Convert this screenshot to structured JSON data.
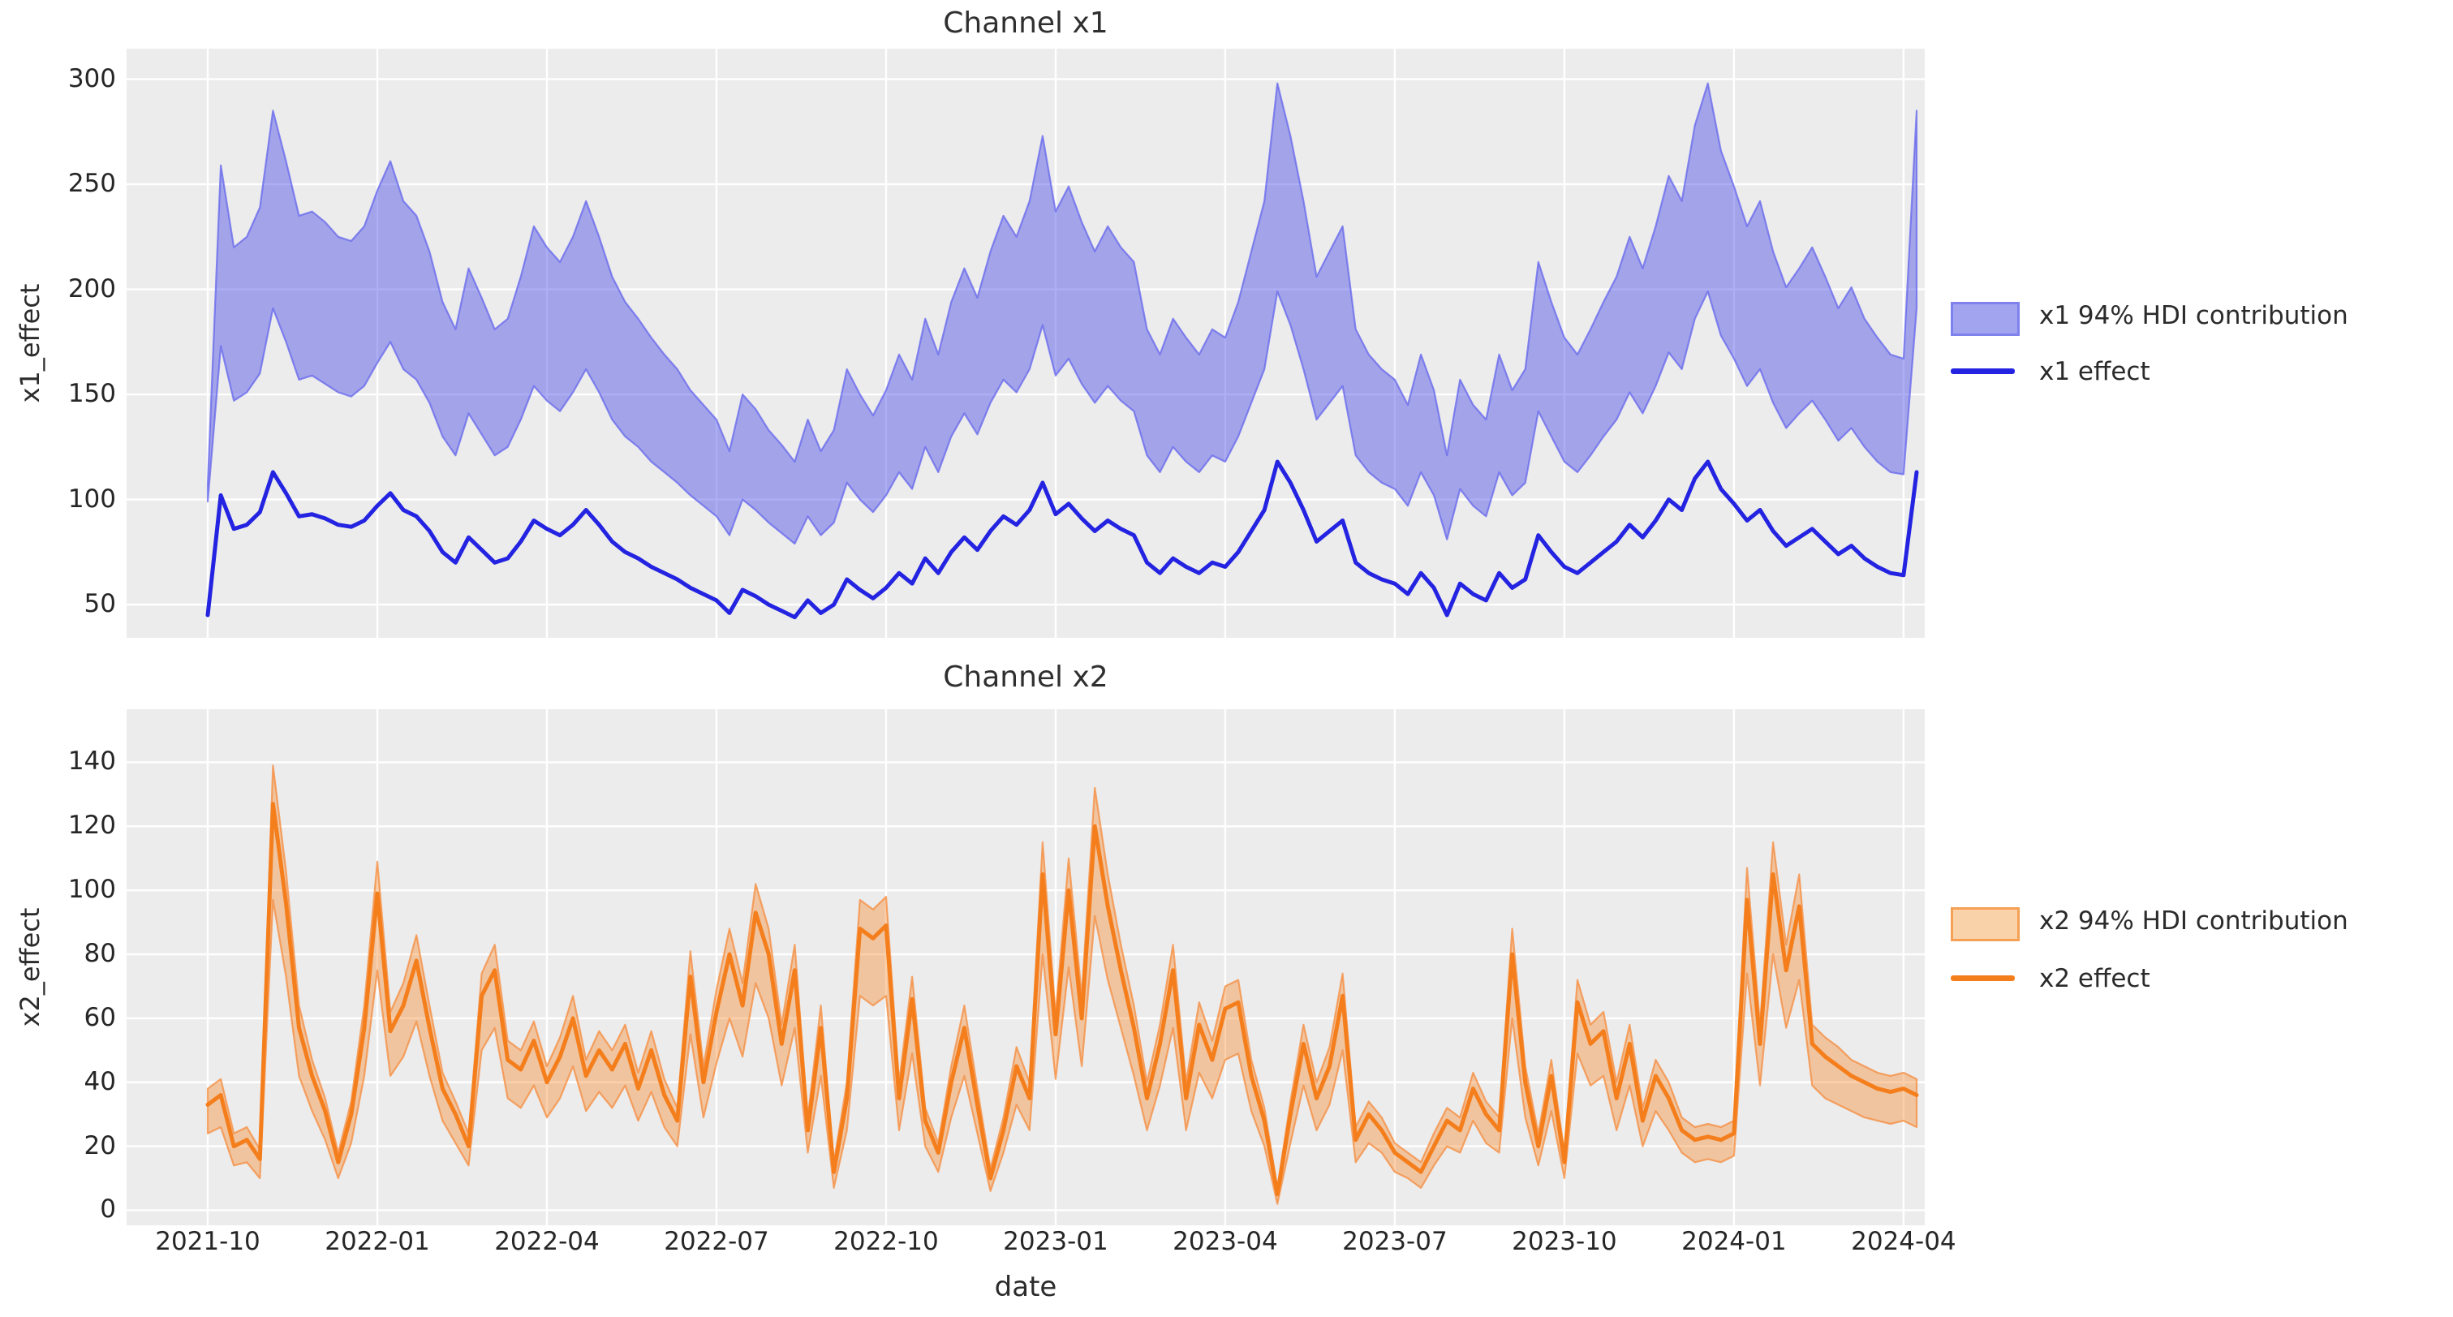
{
  "figure": {
    "background": "#ffffff",
    "plot_background": "#ececec",
    "grid_color": "#ffffff",
    "text_color": "#2b2b2b"
  },
  "x_axis": {
    "label": "date",
    "tick_labels": [
      "2021-10",
      "2022-01",
      "2022-04",
      "2022-07",
      "2022-10",
      "2023-01",
      "2023-04",
      "2023-07",
      "2023-10",
      "2024-01",
      "2024-04"
    ]
  },
  "chart_data": [
    {
      "type": "area",
      "title": "Channel x1",
      "ylabel": "x1_effect",
      "legend": [
        {
          "label": "x1 94% HDI contribution",
          "kind": "band"
        },
        {
          "label": "x1 effect",
          "kind": "line"
        }
      ],
      "legend_position": "right",
      "grid": true,
      "colors": {
        "line": "#2323e1",
        "band_fill": "rgba(60,62,228,0.42)",
        "band_edge": "rgba(100,102,236,0.75)",
        "swatch_fill": "#a3a4ef",
        "swatch_edge": "#7f81ec"
      },
      "x_start": "2021-10-04",
      "x_step_days": 7,
      "n_points": 132,
      "x_ticks": [
        {
          "week": 0,
          "label": "2021-10"
        },
        {
          "week": 13,
          "label": "2022-01"
        },
        {
          "week": 26,
          "label": "2022-04"
        },
        {
          "week": 39,
          "label": "2022-07"
        },
        {
          "week": 52,
          "label": "2022-10"
        },
        {
          "week": 65,
          "label": "2023-01"
        },
        {
          "week": 78,
          "label": "2023-04"
        },
        {
          "week": 91,
          "label": "2023-07"
        },
        {
          "week": 104,
          "label": "2023-10"
        },
        {
          "week": 117,
          "label": "2024-01"
        },
        {
          "week": 130,
          "label": "2024-04"
        }
      ],
      "y_ticks": [
        50,
        100,
        150,
        200,
        250,
        300
      ],
      "ylim": [
        34.2,
        314.5
      ],
      "series": [
        {
          "name": "x1 effect",
          "values": [
            45,
            102,
            86,
            88,
            94,
            113,
            103,
            92,
            93,
            91,
            88,
            87,
            90,
            97,
            103,
            95,
            92,
            85,
            75,
            70,
            82,
            76,
            70,
            72,
            80,
            90,
            86,
            83,
            88,
            95,
            88,
            80,
            75,
            72,
            68,
            65,
            62,
            58,
            55,
            52,
            46,
            57,
            54,
            50,
            47,
            44,
            52,
            46,
            50,
            62,
            57,
            53,
            58,
            65,
            60,
            72,
            65,
            75,
            82,
            76,
            85,
            92,
            88,
            95,
            108,
            93,
            98,
            91,
            85,
            90,
            86,
            83,
            70,
            65,
            72,
            68,
            65,
            70,
            68,
            75,
            85,
            95,
            118,
            108,
            95,
            80,
            85,
            90,
            70,
            65,
            62,
            60,
            55,
            65,
            58,
            45,
            60,
            55,
            52,
            65,
            58,
            62,
            83,
            75,
            68,
            65,
            70,
            75,
            80,
            88,
            82,
            90,
            100,
            95,
            110,
            118,
            105,
            98,
            90,
            95,
            85,
            78,
            82,
            86,
            80,
            74,
            78,
            72,
            68,
            65,
            64,
            113
          ]
        },
        {
          "name": "x1 94% HDI lower",
          "values": [
            99,
            173,
            147,
            151,
            160,
            191,
            175,
            157,
            159,
            155,
            151,
            149,
            154,
            165,
            175,
            162,
            157,
            146,
            130,
            121,
            141,
            131,
            121,
            125,
            138,
            154,
            147,
            142,
            151,
            162,
            151,
            138,
            130,
            125,
            118,
            113,
            108,
            102,
            97,
            92,
            83,
            100,
            95,
            89,
            84,
            79,
            92,
            83,
            89,
            108,
            100,
            94,
            102,
            113,
            105,
            125,
            113,
            130,
            141,
            131,
            146,
            157,
            151,
            162,
            183,
            159,
            167,
            155,
            146,
            154,
            147,
            142,
            121,
            113,
            125,
            118,
            113,
            121,
            118,
            130,
            146,
            162,
            199,
            183,
            162,
            138,
            146,
            154,
            121,
            113,
            108,
            105,
            97,
            113,
            102,
            81,
            105,
            97,
            92,
            113,
            102,
            108,
            142,
            130,
            118,
            113,
            121,
            130,
            138,
            151,
            141,
            154,
            170,
            162,
            186,
            199,
            178,
            167,
            154,
            162,
            146,
            134,
            141,
            147,
            138,
            128,
            134,
            125,
            118,
            113,
            112,
            191
          ]
        },
        {
          "name": "x1 94% HDI upper",
          "values": [
            107,
            259,
            220,
            225,
            239,
            285,
            261,
            235,
            237,
            232,
            225,
            223,
            230,
            247,
            261,
            242,
            235,
            218,
            194,
            181,
            210,
            196,
            181,
            186,
            206,
            230,
            220,
            213,
            225,
            242,
            225,
            206,
            194,
            186,
            177,
            169,
            162,
            152,
            145,
            138,
            123,
            150,
            143,
            133,
            126,
            118,
            138,
            123,
            133,
            162,
            150,
            140,
            152,
            169,
            157,
            186,
            169,
            194,
            210,
            196,
            218,
            235,
            225,
            242,
            273,
            237,
            249,
            232,
            218,
            230,
            220,
            213,
            181,
            169,
            186,
            177,
            169,
            181,
            177,
            194,
            218,
            242,
            298,
            273,
            242,
            206,
            218,
            230,
            181,
            169,
            162,
            157,
            145,
            169,
            152,
            121,
            157,
            145,
            138,
            169,
            152,
            162,
            213,
            194,
            177,
            169,
            181,
            194,
            206,
            225,
            210,
            230,
            254,
            242,
            278,
            298,
            266,
            249,
            230,
            242,
            218,
            201,
            210,
            220,
            206,
            191,
            201,
            186,
            177,
            169,
            167,
            285
          ]
        }
      ]
    },
    {
      "type": "area",
      "title": "Channel x2",
      "ylabel": "x2_effect",
      "legend": [
        {
          "label": "x2 94% HDI contribution",
          "kind": "band"
        },
        {
          "label": "x2 effect",
          "kind": "line"
        }
      ],
      "legend_position": "right",
      "grid": true,
      "colors": {
        "line": "#f57e1c",
        "band_fill": "rgba(245,127,28,0.37)",
        "band_edge": "rgba(245,139,60,0.75)",
        "swatch_fill": "#fad2aa",
        "swatch_edge": "#f5a055"
      },
      "x_start": "2021-10-04",
      "x_step_days": 7,
      "n_points": 132,
      "x_ticks": [
        {
          "week": 0,
          "label": "2021-10"
        },
        {
          "week": 13,
          "label": "2022-01"
        },
        {
          "week": 26,
          "label": "2022-04"
        },
        {
          "week": 39,
          "label": "2022-07"
        },
        {
          "week": 52,
          "label": "2022-10"
        },
        {
          "week": 65,
          "label": "2023-01"
        },
        {
          "week": 78,
          "label": "2023-04"
        },
        {
          "week": 91,
          "label": "2023-07"
        },
        {
          "week": 104,
          "label": "2023-10"
        },
        {
          "week": 117,
          "label": "2024-01"
        },
        {
          "week": 130,
          "label": "2024-04"
        }
      ],
      "y_ticks": [
        0,
        20,
        40,
        60,
        80,
        100,
        120,
        140
      ],
      "ylim": [
        -4.7,
        156.6
      ],
      "series": [
        {
          "name": "x2 effect",
          "values": [
            33,
            36,
            20,
            22,
            16,
            127,
            96,
            57,
            42,
            31,
            15,
            30,
            57,
            99,
            56,
            64,
            78,
            57,
            38,
            30,
            20,
            67,
            75,
            47,
            44,
            53,
            40,
            48,
            60,
            42,
            50,
            44,
            52,
            38,
            50,
            36,
            28,
            73,
            40,
            62,
            80,
            64,
            93,
            80,
            52,
            75,
            25,
            57,
            12,
            35,
            88,
            85,
            89,
            35,
            66,
            28,
            18,
            40,
            57,
            33,
            10,
            25,
            45,
            35,
            105,
            55,
            100,
            60,
            120,
            95,
            75,
            57,
            35,
            52,
            75,
            35,
            58,
            47,
            63,
            65,
            42,
            28,
            5,
            30,
            52,
            35,
            45,
            67,
            22,
            30,
            25,
            18,
            15,
            12,
            20,
            28,
            25,
            38,
            30,
            25,
            80,
            40,
            20,
            42,
            15,
            65,
            52,
            56,
            35,
            52,
            28,
            42,
            35,
            25,
            22,
            23,
            22,
            24,
            97,
            52,
            105,
            75,
            95,
            52,
            48,
            45,
            42,
            40,
            38,
            37,
            38,
            36
          ]
        },
        {
          "name": "x2 94% HDI lower",
          "values": [
            24,
            26,
            14,
            15,
            10,
            97,
            73,
            42,
            31,
            22,
            10,
            21,
            42,
            75,
            42,
            48,
            59,
            42,
            28,
            21,
            14,
            50,
            57,
            35,
            32,
            39,
            29,
            35,
            45,
            31,
            37,
            32,
            39,
            28,
            37,
            26,
            20,
            55,
            29,
            46,
            60,
            48,
            71,
            60,
            39,
            57,
            18,
            42,
            7,
            25,
            67,
            64,
            67,
            25,
            49,
            20,
            12,
            29,
            42,
            24,
            6,
            18,
            33,
            25,
            80,
            41,
            76,
            45,
            92,
            72,
            57,
            42,
            25,
            39,
            57,
            25,
            43,
            35,
            47,
            49,
            31,
            20,
            2,
            21,
            39,
            25,
            33,
            50,
            15,
            21,
            18,
            12,
            10,
            7,
            14,
            20,
            18,
            28,
            21,
            18,
            60,
            29,
            14,
            31,
            10,
            49,
            39,
            42,
            25,
            39,
            20,
            31,
            25,
            18,
            15,
            16,
            15,
            17,
            74,
            39,
            80,
            57,
            72,
            39,
            35,
            33,
            31,
            29,
            28,
            27,
            28,
            26
          ]
        },
        {
          "name": "x2 94% HDI upper",
          "values": [
            38,
            41,
            24,
            26,
            19,
            139,
            106,
            64,
            47,
            35,
            18,
            34,
            64,
            109,
            62,
            71,
            86,
            64,
            43,
            34,
            24,
            74,
            83,
            53,
            50,
            59,
            45,
            54,
            67,
            47,
            56,
            50,
            58,
            43,
            56,
            41,
            32,
            81,
            45,
            69,
            88,
            71,
            102,
            88,
            58,
            83,
            29,
            64,
            15,
            40,
            97,
            94,
            98,
            40,
            73,
            32,
            21,
            45,
            64,
            38,
            13,
            29,
            51,
            40,
            115,
            61,
            110,
            67,
            132,
            105,
            83,
            64,
            40,
            58,
            83,
            40,
            65,
            53,
            70,
            72,
            47,
            32,
            7,
            34,
            58,
            40,
            51,
            74,
            26,
            34,
            29,
            21,
            18,
            15,
            24,
            32,
            29,
            43,
            34,
            29,
            88,
            45,
            24,
            47,
            18,
            72,
            58,
            62,
            40,
            58,
            32,
            47,
            40,
            29,
            26,
            27,
            26,
            28,
            107,
            58,
            115,
            83,
            105,
            58,
            54,
            51,
            47,
            45,
            43,
            42,
            43,
            41
          ]
        }
      ]
    }
  ]
}
